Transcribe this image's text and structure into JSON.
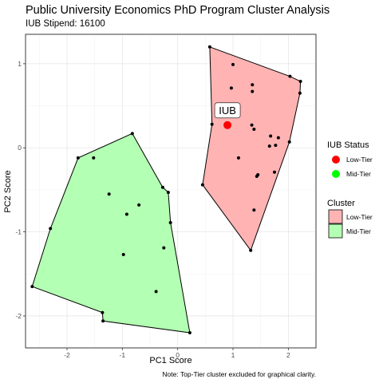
{
  "chart_data": {
    "type": "scatter",
    "title": "Public University Economics PhD Program Cluster Analysis",
    "subtitle": "IUB Stipend: 16100",
    "xlabel": "PC1 Score",
    "ylabel": "PC2 Score",
    "caption": "Note: Top-Tier cluster excluded for graphical clarity.",
    "xlim": [
      -2.75,
      2.5
    ],
    "ylim": [
      -2.38,
      1.35
    ],
    "x_ticks": [
      -2,
      -1,
      0,
      1,
      2
    ],
    "y_ticks": [
      -2,
      -1,
      0,
      1
    ],
    "x_tick_labels": [
      "-2",
      "-1",
      "0",
      "1",
      "2"
    ],
    "y_tick_labels": [
      "-2",
      "-1",
      "0",
      "1"
    ],
    "grid": true,
    "clusters": [
      {
        "name": "Low-Tier",
        "color": "#ff0000",
        "fill": "#ffb3b3",
        "points": [
          [
            0.58,
            1.2
          ],
          [
            1.0,
            0.99
          ],
          [
            0.97,
            0.71
          ],
          [
            1.35,
            0.75
          ],
          [
            1.35,
            0.67
          ],
          [
            2.03,
            0.85
          ],
          [
            2.22,
            0.79
          ],
          [
            2.21,
            0.65
          ],
          [
            0.85,
            0.47
          ],
          [
            0.62,
            0.28
          ],
          [
            1.34,
            0.27
          ],
          [
            1.38,
            0.22
          ],
          [
            1.68,
            0.14
          ],
          [
            1.82,
            0.12
          ],
          [
            1.77,
            0.03
          ],
          [
            1.66,
            0.02
          ],
          [
            2.02,
            0.07
          ],
          [
            1.1,
            -0.12
          ],
          [
            1.45,
            -0.32
          ],
          [
            1.43,
            -0.34
          ],
          [
            1.75,
            -0.29
          ],
          [
            0.45,
            -0.44
          ],
          [
            1.38,
            -0.74
          ],
          [
            1.32,
            -1.22
          ]
        ],
        "hull": [
          [
            0.58,
            1.2
          ],
          [
            2.03,
            0.85
          ],
          [
            2.22,
            0.79
          ],
          [
            2.21,
            0.65
          ],
          [
            2.02,
            0.07
          ],
          [
            1.32,
            -1.22
          ],
          [
            0.45,
            -0.44
          ],
          [
            0.62,
            0.28
          ]
        ]
      },
      {
        "name": "Mid-Tier",
        "color": "#00ff00",
        "fill": "#b3ffb3",
        "points": [
          [
            -0.82,
            0.17
          ],
          [
            -1.8,
            -0.12
          ],
          [
            -1.52,
            -0.12
          ],
          [
            -1.24,
            -0.55
          ],
          [
            -0.92,
            -0.79
          ],
          [
            -0.7,
            -0.68
          ],
          [
            -0.27,
            -0.47
          ],
          [
            -0.17,
            -0.53
          ],
          [
            -0.13,
            -0.89
          ],
          [
            -2.3,
            -0.96
          ],
          [
            -0.25,
            -1.19
          ],
          [
            -0.98,
            -1.27
          ],
          [
            -2.63,
            -1.65
          ],
          [
            -0.39,
            -1.71
          ],
          [
            -1.36,
            -1.96
          ],
          [
            -1.35,
            -2.06
          ],
          [
            0.22,
            -2.2
          ]
        ],
        "hull": [
          [
            -0.82,
            0.17
          ],
          [
            -0.27,
            -0.47
          ],
          [
            -0.17,
            -0.53
          ],
          [
            -0.13,
            -0.89
          ],
          [
            0.22,
            -2.2
          ],
          [
            -1.35,
            -2.06
          ],
          [
            -1.36,
            -1.96
          ],
          [
            -2.63,
            -1.65
          ],
          [
            -2.3,
            -0.96
          ],
          [
            -1.8,
            -0.12
          ]
        ]
      }
    ],
    "highlight": {
      "label": "IUB",
      "x": 0.9,
      "y": 0.27,
      "status": "Low-Tier",
      "color": "#ff0000"
    },
    "legends": {
      "status": {
        "title": "IUB Status",
        "items": [
          {
            "label": "Low-Tier",
            "color": "#ff0000"
          },
          {
            "label": "Mid-Tier",
            "color": "#00ff00"
          }
        ]
      },
      "cluster": {
        "title": "Cluster",
        "items": [
          {
            "label": "Low-Tier",
            "fill": "#ffb3b3"
          },
          {
            "label": "Mid-Tier",
            "fill": "#b3ffb3"
          }
        ]
      },
      "placement": "right"
    }
  }
}
